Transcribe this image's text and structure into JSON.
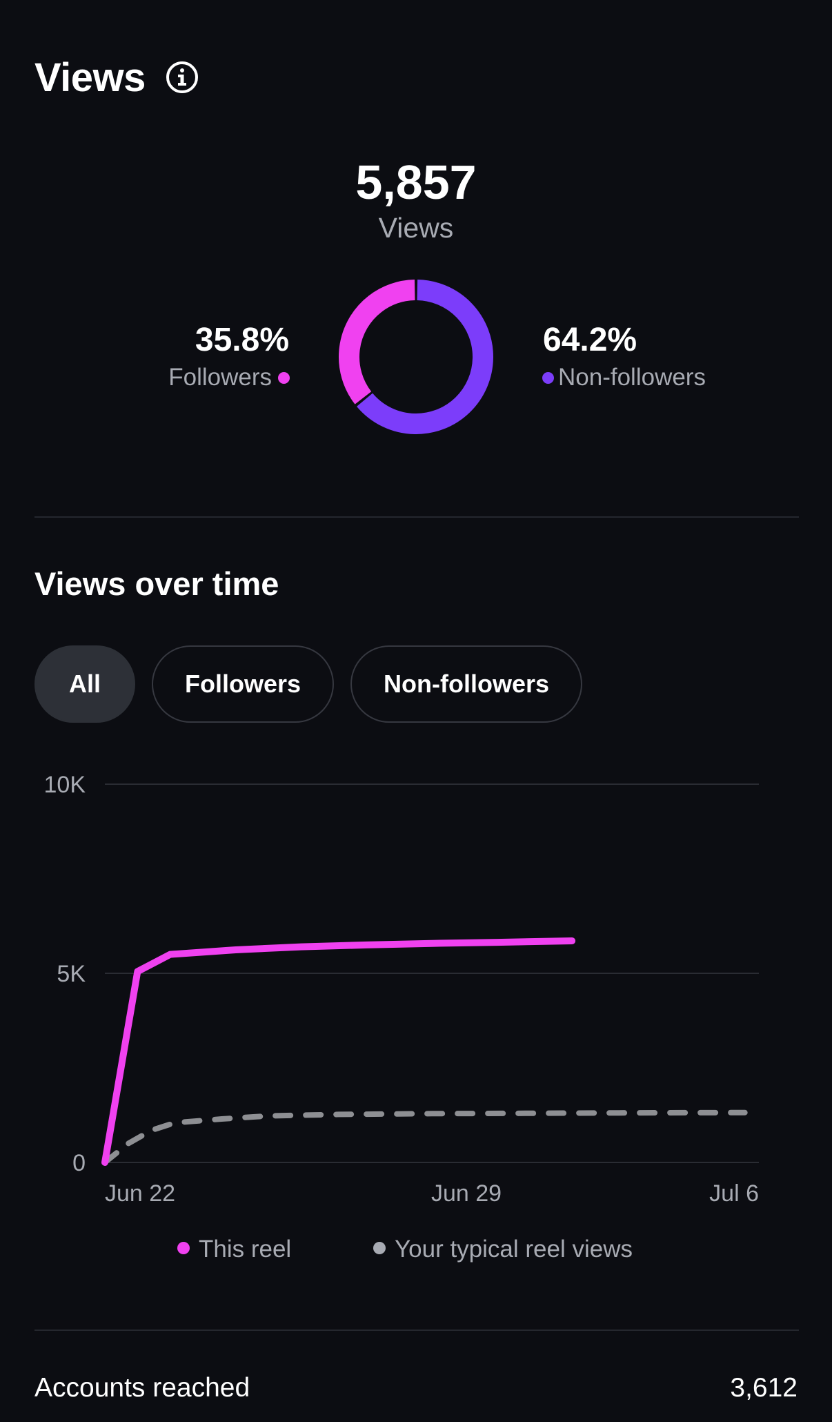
{
  "header": {
    "title": "Views"
  },
  "summary": {
    "total_value": "5,857",
    "total_label": "Views",
    "followers_pct": "35.8%",
    "followers_label": "Followers",
    "followers_share": 35.8,
    "nonfollowers_pct": "64.2%",
    "nonfollowers_label": "Non-followers",
    "nonfollowers_share": 64.2
  },
  "over_time": {
    "title": "Views over time",
    "filters": [
      {
        "label": "All",
        "active": true
      },
      {
        "label": "Followers",
        "active": false
      },
      {
        "label": "Non-followers",
        "active": false
      }
    ]
  },
  "chart_data": {
    "type": "line",
    "x_ticks": [
      "Jun 22",
      "Jun 29",
      "Jul 6"
    ],
    "y_ticks": [
      {
        "value": 0,
        "label": "0"
      },
      {
        "value": 5000,
        "label": "5K"
      },
      {
        "value": 10000,
        "label": "10K"
      }
    ],
    "ylim": [
      0,
      10000
    ],
    "xlim": [
      0,
      14
    ],
    "grid": true,
    "legend_position": "bottom",
    "series": [
      {
        "name": "This reel",
        "style": "solid",
        "points": [
          [
            0,
            0
          ],
          [
            0.7,
            5050
          ],
          [
            1.4,
            5500
          ],
          [
            2.8,
            5620
          ],
          [
            4.2,
            5700
          ],
          [
            5.6,
            5750
          ],
          [
            7.0,
            5790
          ],
          [
            8.4,
            5820
          ],
          [
            10.0,
            5857
          ]
        ]
      },
      {
        "name": "Your typical reel views",
        "style": "dashed",
        "points": [
          [
            0,
            0
          ],
          [
            0.5,
            500
          ],
          [
            1.0,
            850
          ],
          [
            1.5,
            1050
          ],
          [
            2.5,
            1150
          ],
          [
            3.5,
            1230
          ],
          [
            5,
            1270
          ],
          [
            7,
            1290
          ],
          [
            9,
            1300
          ],
          [
            11,
            1310
          ],
          [
            13.7,
            1320
          ]
        ]
      }
    ]
  },
  "reach": {
    "label": "Accounts reached",
    "value": "3,612"
  },
  "colors": {
    "background": "#0c0d12",
    "followers": "#f041f0",
    "nonfollowers": "#7c3dfa",
    "typical": "#8e8f93",
    "grid": "#2a2c33",
    "muted_text": "#a8abb3"
  }
}
